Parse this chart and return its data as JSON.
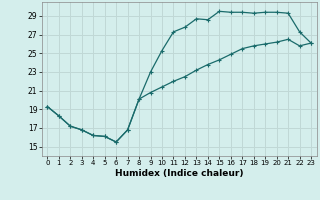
{
  "xlabel": "Humidex (Indice chaleur)",
  "background_color": "#d4eeec",
  "grid_color": "#c0d8d6",
  "line_color": "#1a6b6b",
  "xlim": [
    -0.5,
    23.5
  ],
  "ylim": [
    14.0,
    30.5
  ],
  "xticks": [
    0,
    1,
    2,
    3,
    4,
    5,
    6,
    7,
    8,
    9,
    10,
    11,
    12,
    13,
    14,
    15,
    16,
    17,
    18,
    19,
    20,
    21,
    22,
    23
  ],
  "yticks": [
    15,
    17,
    19,
    21,
    23,
    25,
    27,
    29
  ],
  "curve1_x": [
    0,
    1,
    2,
    3,
    4,
    5,
    6,
    7,
    8,
    9,
    10,
    11,
    12,
    13,
    14,
    15,
    16,
    17,
    18,
    19,
    20,
    21,
    22,
    23
  ],
  "curve1_y": [
    19.3,
    18.3,
    17.2,
    16.8,
    16.2,
    16.1,
    15.5,
    16.8,
    20.1,
    23.0,
    25.3,
    27.3,
    27.8,
    28.7,
    28.6,
    29.5,
    29.4,
    29.4,
    29.3,
    29.4,
    29.4,
    29.3,
    27.3,
    26.1
  ],
  "curve2_x": [
    0,
    1,
    2,
    3,
    4,
    5,
    6,
    7,
    8,
    9,
    10,
    11,
    12,
    13,
    14,
    15,
    16,
    17,
    18,
    19,
    20,
    21,
    22,
    23
  ],
  "curve2_y": [
    19.3,
    18.3,
    17.2,
    16.8,
    16.2,
    16.1,
    15.5,
    16.8,
    20.1,
    20.8,
    21.4,
    22.0,
    22.5,
    23.2,
    23.8,
    24.3,
    24.9,
    25.5,
    25.8,
    26.0,
    26.2,
    26.5,
    25.8,
    26.1
  ]
}
